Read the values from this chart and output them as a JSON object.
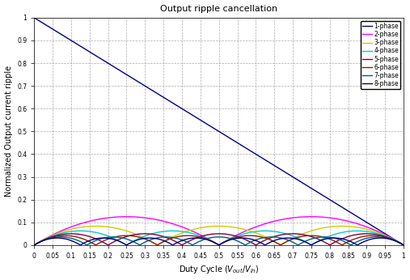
{
  "title": "Output ripple cancellation",
  "xlabel": "Duty Cycle (V_out/V_in)",
  "ylabel": "Normalized Output current ripple",
  "xlim": [
    0,
    1
  ],
  "ylim": [
    0,
    1
  ],
  "xticks": [
    0,
    0.05,
    0.1,
    0.15,
    0.2,
    0.25,
    0.3,
    0.35,
    0.4,
    0.45,
    0.5,
    0.55,
    0.6,
    0.65,
    0.7,
    0.75,
    0.8,
    0.85,
    0.9,
    0.95,
    1.0
  ],
  "yticks": [
    0,
    0.1,
    0.2,
    0.3,
    0.4,
    0.5,
    0.6,
    0.7,
    0.8,
    0.9,
    1.0
  ],
  "phases": [
    1,
    2,
    3,
    4,
    5,
    6,
    7,
    8
  ],
  "colors": [
    "#00008B",
    "#FF00FF",
    "#CCCC00",
    "#00CCCC",
    "#800040",
    "#8B2000",
    "#006080",
    "#000080"
  ],
  "legend_labels": [
    "1-phase",
    "2-phase",
    "3-phase",
    "4-phase",
    "5-phase",
    "6-phase",
    "7-phase",
    "8-phase"
  ],
  "figsize": [
    5.07,
    3.46
  ],
  "dpi": 100
}
